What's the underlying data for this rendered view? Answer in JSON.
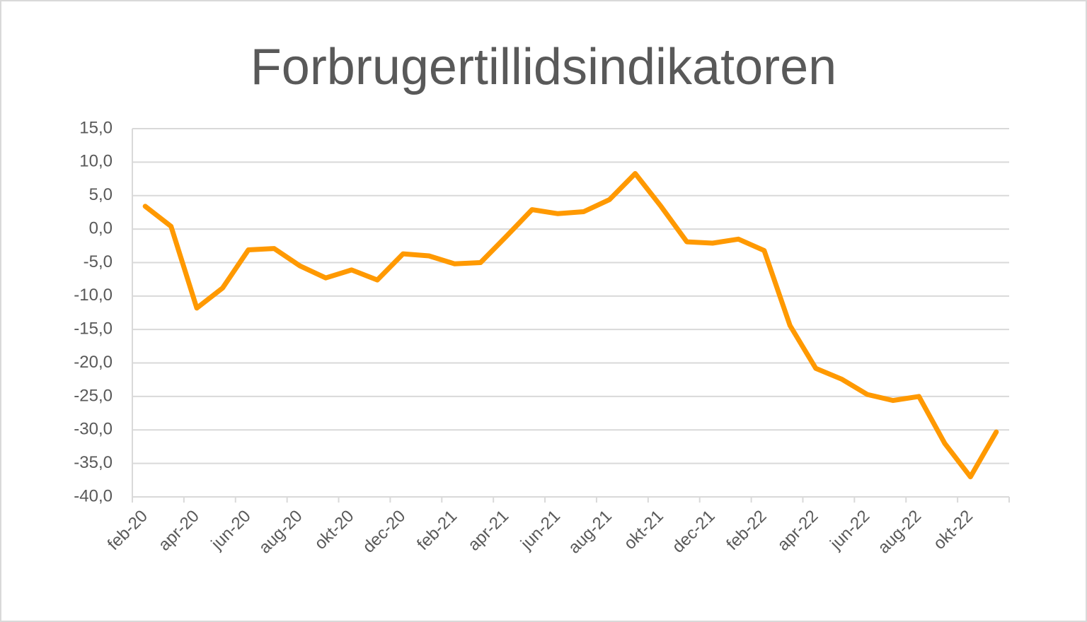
{
  "chart_data": {
    "type": "line",
    "title": "Forbrugertillidsindikatoren",
    "categories": [
      "feb-20",
      null,
      "apr-20",
      null,
      "jun-20",
      null,
      "aug-20",
      null,
      "okt-20",
      null,
      "dec-20",
      null,
      "feb-21",
      null,
      "apr-21",
      null,
      "jun-21",
      null,
      "aug-21",
      null,
      "okt-21",
      null,
      "dec-21",
      null,
      "feb-22",
      null,
      "apr-22",
      null,
      "jun-22",
      null,
      "aug-22",
      null,
      "okt-22",
      null
    ],
    "series": [
      {
        "name": "Forbrugertillidsindikatoren",
        "color": "#ff9900",
        "values": [
          3.4,
          0.4,
          -11.8,
          -8.8,
          -3.1,
          -2.9,
          -5.5,
          -7.3,
          -6.1,
          -7.6,
          -3.7,
          -4.0,
          -5.2,
          -5.0,
          -1.1,
          2.9,
          2.3,
          2.6,
          4.4,
          8.3,
          3.4,
          -1.9,
          -2.1,
          -1.5,
          -3.2,
          -14.4,
          -20.8,
          -22.4,
          -24.7,
          -25.6,
          -25.0,
          -32.0,
          -37.0,
          -30.3
        ]
      }
    ],
    "ylim": [
      -40,
      15
    ],
    "yticks": [
      {
        "value": -40,
        "label": "-40,0"
      },
      {
        "value": -35,
        "label": "-35,0"
      },
      {
        "value": -30,
        "label": "-30,0"
      },
      {
        "value": -25,
        "label": "-25,0"
      },
      {
        "value": -20,
        "label": "-20,0"
      },
      {
        "value": -15,
        "label": "-15,0"
      },
      {
        "value": -10,
        "label": "-10,0"
      },
      {
        "value": -5,
        "label": "-5,0"
      },
      {
        "value": 0,
        "label": "0,0"
      },
      {
        "value": 5,
        "label": "5,0"
      },
      {
        "value": 10,
        "label": "10,0"
      },
      {
        "value": 15,
        "label": "15,0"
      }
    ],
    "grid": true
  }
}
